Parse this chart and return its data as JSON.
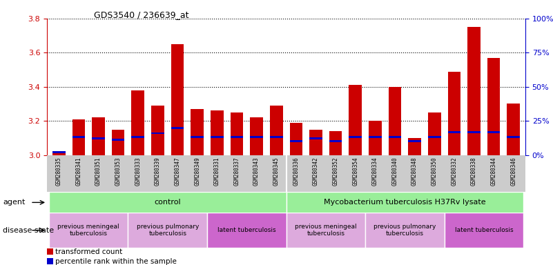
{
  "title": "GDS3540 / 236639_at",
  "samples": [
    "GSM280335",
    "GSM280341",
    "GSM280351",
    "GSM280353",
    "GSM280333",
    "GSM280339",
    "GSM280347",
    "GSM280349",
    "GSM280331",
    "GSM280337",
    "GSM280343",
    "GSM280345",
    "GSM280336",
    "GSM280342",
    "GSM280352",
    "GSM280354",
    "GSM280334",
    "GSM280340",
    "GSM280348",
    "GSM280350",
    "GSM280332",
    "GSM280338",
    "GSM280344",
    "GSM280346"
  ],
  "transformed_count": [
    3.02,
    3.21,
    3.22,
    3.15,
    3.38,
    3.29,
    3.65,
    3.27,
    3.26,
    3.25,
    3.22,
    3.29,
    3.19,
    3.15,
    3.14,
    3.41,
    3.2,
    3.4,
    3.1,
    3.25,
    3.49,
    3.75,
    3.57,
    3.3
  ],
  "percentile_rank": [
    2,
    13,
    12,
    11,
    13,
    16,
    20,
    13,
    13,
    13,
    13,
    13,
    10,
    12,
    10,
    13,
    13,
    13,
    10,
    13,
    17,
    17,
    17,
    13
  ],
  "ylim_left": [
    3.0,
    3.8
  ],
  "ylim_right": [
    0,
    100
  ],
  "yticks_left": [
    3.0,
    3.2,
    3.4,
    3.6,
    3.8
  ],
  "yticks_right": [
    0,
    25,
    50,
    75,
    100
  ],
  "bar_color_red": "#cc0000",
  "bar_color_blue": "#0000cc",
  "agent_groups": [
    {
      "label": "control",
      "start": 0,
      "end": 11,
      "color": "#99ee99"
    },
    {
      "label": "Mycobacterium tuberculosis H37Rv lysate",
      "start": 12,
      "end": 23,
      "color": "#99ee99"
    }
  ],
  "disease_groups": [
    {
      "label": "previous meningeal\ntuberculosis",
      "start": 0,
      "end": 3,
      "color": "#ddaadd"
    },
    {
      "label": "previous pulmonary\ntuberculosis",
      "start": 4,
      "end": 7,
      "color": "#ddaadd"
    },
    {
      "label": "latent tuberculosis",
      "start": 8,
      "end": 11,
      "color": "#cc66cc"
    },
    {
      "label": "previous meningeal\ntuberculosis",
      "start": 12,
      "end": 15,
      "color": "#ddaadd"
    },
    {
      "label": "previous pulmonary\ntuberculosis",
      "start": 16,
      "end": 19,
      "color": "#ddaadd"
    },
    {
      "label": "latent tuberculosis",
      "start": 20,
      "end": 23,
      "color": "#cc66cc"
    }
  ],
  "background_color": "#ffffff",
  "xticklabel_bg": "#cccccc"
}
